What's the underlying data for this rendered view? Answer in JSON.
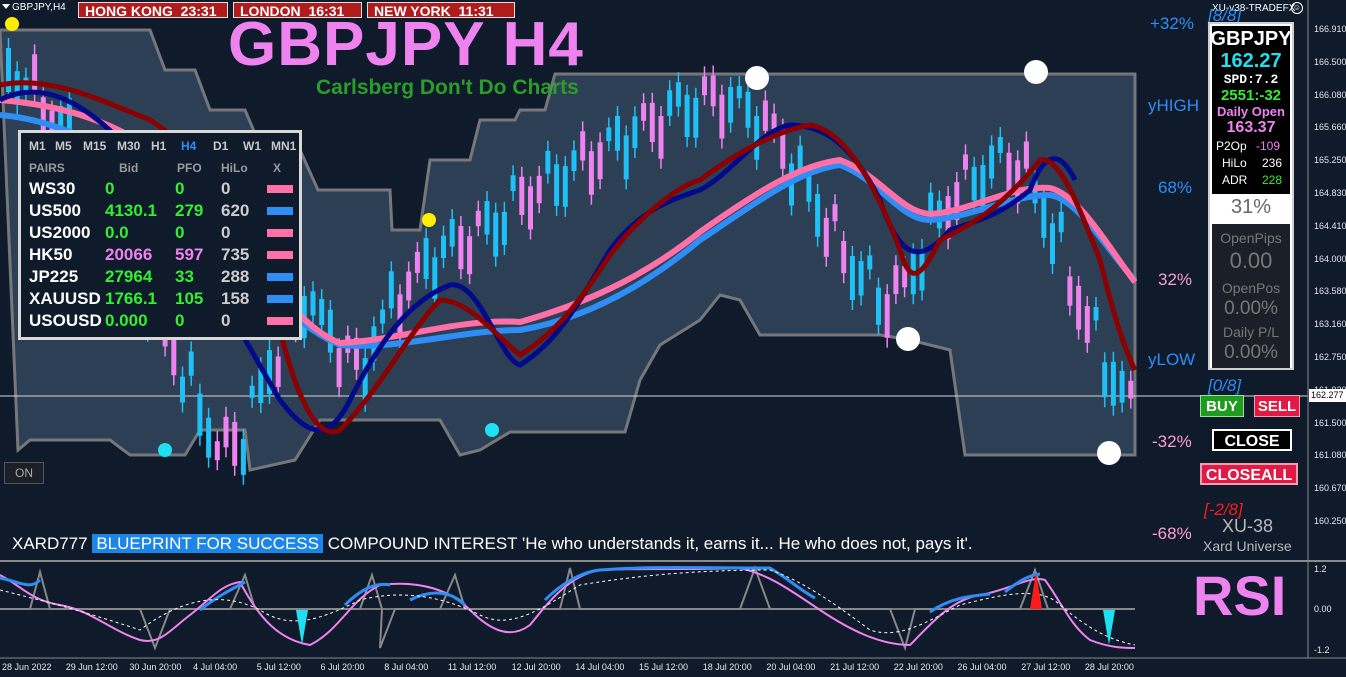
{
  "symbol_label": "GBPJPY,H4",
  "clocks": [
    {
      "city": "HONG KONG",
      "time": "23:31"
    },
    {
      "city": "LONDON",
      "time": "16:31"
    },
    {
      "city": "NEW YORK",
      "time": "11:31"
    }
  ],
  "indicator_label": "XU-v38-TRADEFX",
  "title": "GBPJPY H4",
  "subtitle": "Carlsberg Don't Do Charts",
  "on_button": "ON",
  "rsi_label": "RSI",
  "pairs_table": {
    "timeframes": [
      "M1",
      "M5",
      "M15",
      "M30",
      "H1",
      "H4",
      "D1",
      "W1",
      "MN1"
    ],
    "active_timeframe": "H4",
    "headers": [
      "PAIRS",
      "Bid",
      "PFO",
      "HiLo",
      "X"
    ],
    "rows": [
      {
        "pair": "WS30",
        "bid": "0",
        "pfo": "0",
        "hilo": "0",
        "bid_color": "#33ee33",
        "pfo_color": "#33ee33",
        "swatch": "#ff6fa8"
      },
      {
        "pair": "US500",
        "bid": "4130.1",
        "pfo": "279",
        "hilo": "620",
        "bid_color": "#33ee33",
        "pfo_color": "#33ee33",
        "swatch": "#2e8ef5"
      },
      {
        "pair": "US2000",
        "bid": "0.0",
        "pfo": "0",
        "hilo": "0",
        "bid_color": "#33ee33",
        "pfo_color": "#33ee33",
        "swatch": "#ff6fa8"
      },
      {
        "pair": "HK50",
        "bid": "20066",
        "pfo": "597",
        "hilo": "735",
        "bid_color": "#ee82ee",
        "pfo_color": "#ee82ee",
        "swatch": "#ff6fa8"
      },
      {
        "pair": "JP225",
        "bid": "27964",
        "pfo": "33",
        "hilo": "288",
        "bid_color": "#33ee33",
        "pfo_color": "#33ee33",
        "swatch": "#2e8ef5"
      },
      {
        "pair": "XAUUSD",
        "bid": "1766.1",
        "pfo": "105",
        "hilo": "158",
        "bid_color": "#33ee33",
        "pfo_color": "#33ee33",
        "swatch": "#2e8ef5"
      },
      {
        "pair": "USOUSD",
        "bid": "0.000",
        "pfo": "0",
        "hilo": "0",
        "bid_color": "#33ee33",
        "pfo_color": "#33ee33",
        "swatch": "#ff6fa8"
      }
    ]
  },
  "info_panel": {
    "symbol": "GBPJPY",
    "price": "162.27",
    "spread": "SPD:7.2",
    "pips": "2551:-32",
    "daily_open_label": "Daily Open",
    "daily_open": "163.37",
    "p2op_label": "P2Op",
    "p2op": "-109",
    "hilo_label": "HiLo",
    "hilo": "236",
    "adr_label": "ADR",
    "adr": "228",
    "adr_pct": "31%",
    "open_pips_label": "OpenPips",
    "open_pips": "0.00",
    "open_pos_label": "OpenPos",
    "open_pos": "0.00%",
    "daily_pl_label": "Daily P/L",
    "daily_pl": "0.00%"
  },
  "buttons": {
    "buy": "BUY",
    "sell": "SELL",
    "close": "CLOSE",
    "closeall": "CLOSEALL"
  },
  "levels": {
    "p32": "+32%",
    "yhigh": "yHIGH",
    "p68": "68%",
    "p32b": "32%",
    "ylow": "yLOW",
    "m32": "-32%",
    "m68": "-68%",
    "m8top": "[8/8]",
    "m08": "[0/8]",
    "m_2_8": "[-2/8]"
  },
  "brand": {
    "name": "XU-38",
    "sub": "Xard Universe"
  },
  "footer": {
    "prefix": "XARD777",
    "highlight": "BLUEPRINT FOR SUCCESS",
    "text": "COMPOUND INTEREST  'He who understands it, earns it... He who does not, pays it'."
  },
  "price_axis": [
    "166.910",
    "166.500",
    "166.080",
    "165.660",
    "165.250",
    "164.830",
    "164.410",
    "164.000",
    "163.580",
    "163.160",
    "162.750",
    "162.277",
    "161.920",
    "161.500",
    "161.080",
    "160.670",
    "160.250"
  ],
  "current_price": "162.277",
  "rsi_axis": [
    "1.2",
    "0.00",
    "-1.2"
  ],
  "dates": [
    "28 Jun 2022",
    "29 Jun 12:00",
    "30 Jun 20:00",
    "4 Jul 04:00",
    "5 Jul 12:00",
    "6 Jul 20:00",
    "8 Jul 04:00",
    "11 Jul 12:00",
    "12 Jul 20:00",
    "14 Jul 04:00",
    "15 Jul 12:00",
    "18 Jul 20:00",
    "20 Jul 04:00",
    "21 Jul 12:00",
    "22 Jul 20:00",
    "26 Jul 04:00",
    "27 Jul 12:00",
    "28 Jul 20:00"
  ],
  "colors": {
    "bg": "#0f1a2b",
    "band": "#2a3a4e",
    "bull": "#1ec0f5",
    "bear": "#ee82ee",
    "fast_ma": "#000090",
    "slow_ma": "#8b0000",
    "pink_ma": "#ff6fa8",
    "blue_ma": "#2e8ef5"
  }
}
